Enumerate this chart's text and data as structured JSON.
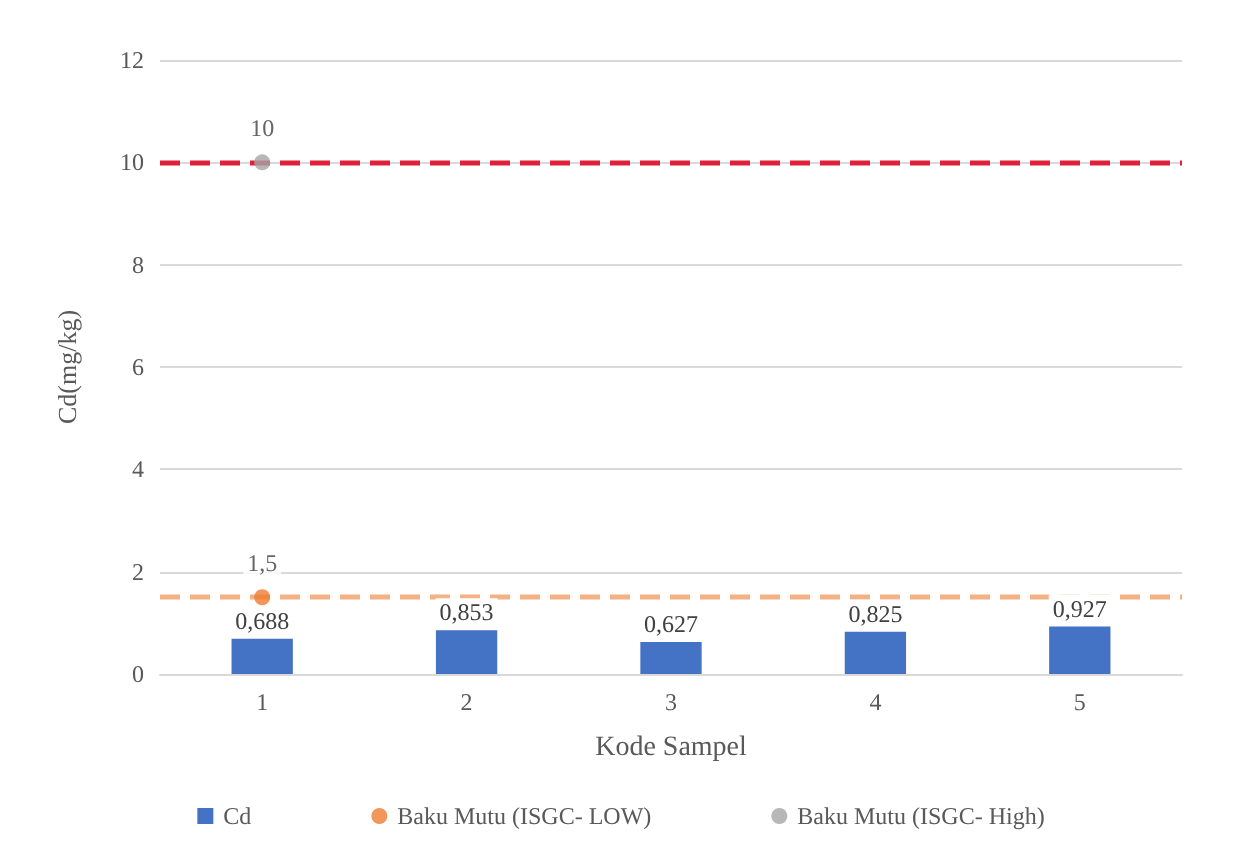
{
  "chart_data": {
    "type": "bar",
    "xlabel": "Kode Sampel",
    "ylabel": "Cd(mg/kg)",
    "categories": [
      "1",
      "2",
      "3",
      "4",
      "5"
    ],
    "series": [
      {
        "name": "Cd",
        "color": "#4472c4",
        "values": [
          0.688,
          0.853,
          0.627,
          0.825,
          0.927
        ],
        "value_labels": [
          "0,688",
          "0,853",
          "0,627",
          "0,825",
          "0,927"
        ]
      },
      {
        "name": "Baku Mutu (ISGC- LOW)",
        "type": "scatter",
        "color": "#ed7d31",
        "values": [
          1.5,
          null,
          null,
          null,
          null
        ],
        "value_labels": [
          "1,5",
          null,
          null,
          null,
          null
        ]
      },
      {
        "name": "Baku Mutu (ISGC- High)",
        "type": "scatter",
        "color": "#a5a5a5",
        "values": [
          10,
          null,
          null,
          null,
          null
        ],
        "value_labels": [
          "10",
          null,
          null,
          null,
          null
        ]
      }
    ],
    "ref_lines": [
      {
        "axis": "y",
        "value": 1.5,
        "color": "#f4b183",
        "line_style": "dashed"
      },
      {
        "axis": "y",
        "value": 10,
        "color": "#e0203a",
        "line_style": "dashed"
      }
    ],
    "ylim": [
      0,
      12
    ],
    "yticks": [
      0,
      2,
      4,
      6,
      8,
      10,
      12
    ],
    "grid": "y",
    "legend": "bottom",
    "marker": "circle"
  }
}
